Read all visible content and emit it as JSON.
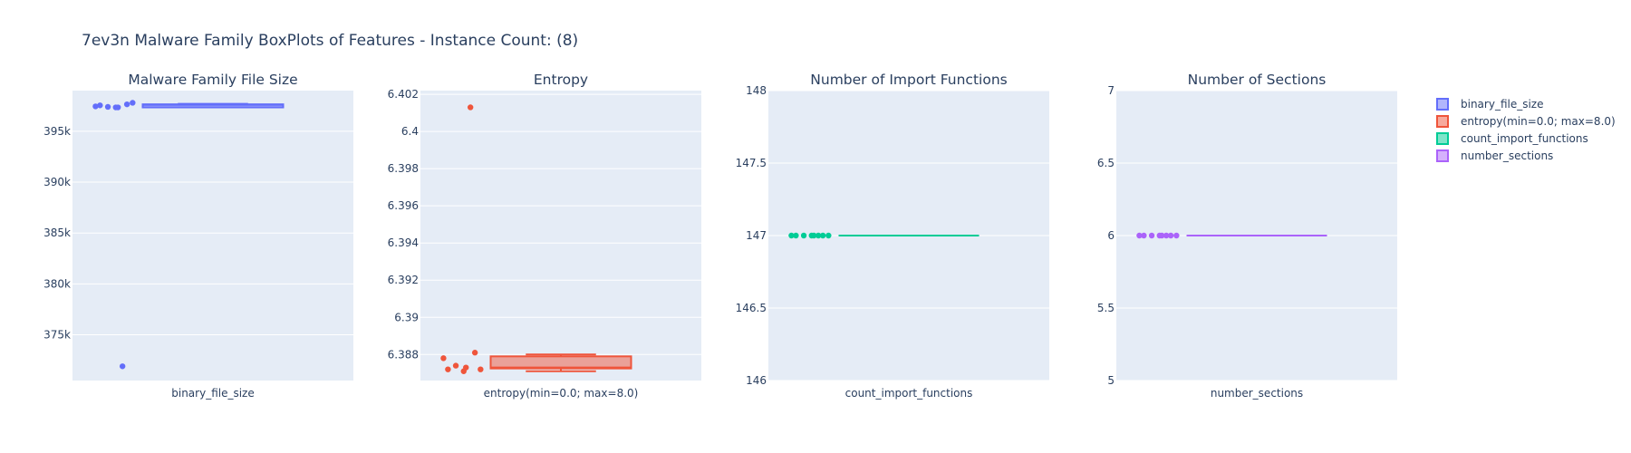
{
  "title": "7ev3n Malware Family BoxPlots of Features - Instance Count: (8)",
  "chart_data": [
    {
      "type": "box",
      "title": "Malware Family File Size",
      "category": "binary_file_size",
      "color": "#636efa",
      "ylim": [
        370500,
        399000
      ],
      "yticks": [
        375000,
        380000,
        385000,
        390000,
        395000
      ],
      "ytick_labels": [
        "375k",
        "380k",
        "385k",
        "390k",
        "395k"
      ],
      "box": {
        "min": 397350,
        "q1": 397350,
        "median": 397600,
        "q3": 397650,
        "max": 397700
      },
      "points": [
        397550,
        397350,
        397400,
        397650,
        397450,
        397800,
        397350,
        371900
      ]
    },
    {
      "type": "box",
      "title": "Entropy",
      "category": "entropy(min=0.0; max=8.0)",
      "color": "#ef553b",
      "ylim": [
        6.3866,
        6.4022
      ],
      "yticks": [
        6.388,
        6.39,
        6.392,
        6.394,
        6.396,
        6.398,
        6.4,
        6.402
      ],
      "ytick_labels": [
        "6.388",
        "6.39",
        "6.392",
        "6.394",
        "6.396",
        "6.398",
        "6.4",
        "6.402"
      ],
      "box": {
        "min": 6.3871,
        "q1": 6.38725,
        "median": 6.3873,
        "q3": 6.3879,
        "max": 6.388
      },
      "points": [
        6.3872,
        6.3873,
        6.3874,
        6.3881,
        6.3878,
        6.3872,
        6.3871,
        6.4013
      ]
    },
    {
      "type": "box",
      "title": "Number of Import Functions",
      "category": "count_import_functions",
      "color": "#00cc96",
      "ylim": [
        146,
        148
      ],
      "yticks": [
        146,
        146.5,
        147,
        147.5,
        148
      ],
      "ytick_labels": [
        "146",
        "146.5",
        "147",
        "147.5",
        "148"
      ],
      "box": {
        "min": 147,
        "q1": 147,
        "median": 147,
        "q3": 147,
        "max": 147
      },
      "points": [
        147,
        147,
        147,
        147,
        147,
        147,
        147,
        147
      ]
    },
    {
      "type": "box",
      "title": "Number of Sections",
      "category": "number_sections",
      "color": "#ab63fa",
      "ylim": [
        5,
        7
      ],
      "yticks": [
        5,
        5.5,
        6,
        6.5,
        7
      ],
      "ytick_labels": [
        "5",
        "5.5",
        "6",
        "6.5",
        "7"
      ],
      "box": {
        "min": 6,
        "q1": 6,
        "median": 6,
        "q3": 6,
        "max": 6
      },
      "points": [
        6,
        6,
        6,
        6,
        6,
        6,
        6,
        6
      ]
    }
  ],
  "legend": [
    {
      "label": "binary_file_size",
      "color": "#636efa"
    },
    {
      "label": "entropy(min=0.0; max=8.0)",
      "color": "#ef553b"
    },
    {
      "label": "count_import_functions",
      "color": "#00cc96"
    },
    {
      "label": "number_sections",
      "color": "#ab63fa"
    }
  ]
}
